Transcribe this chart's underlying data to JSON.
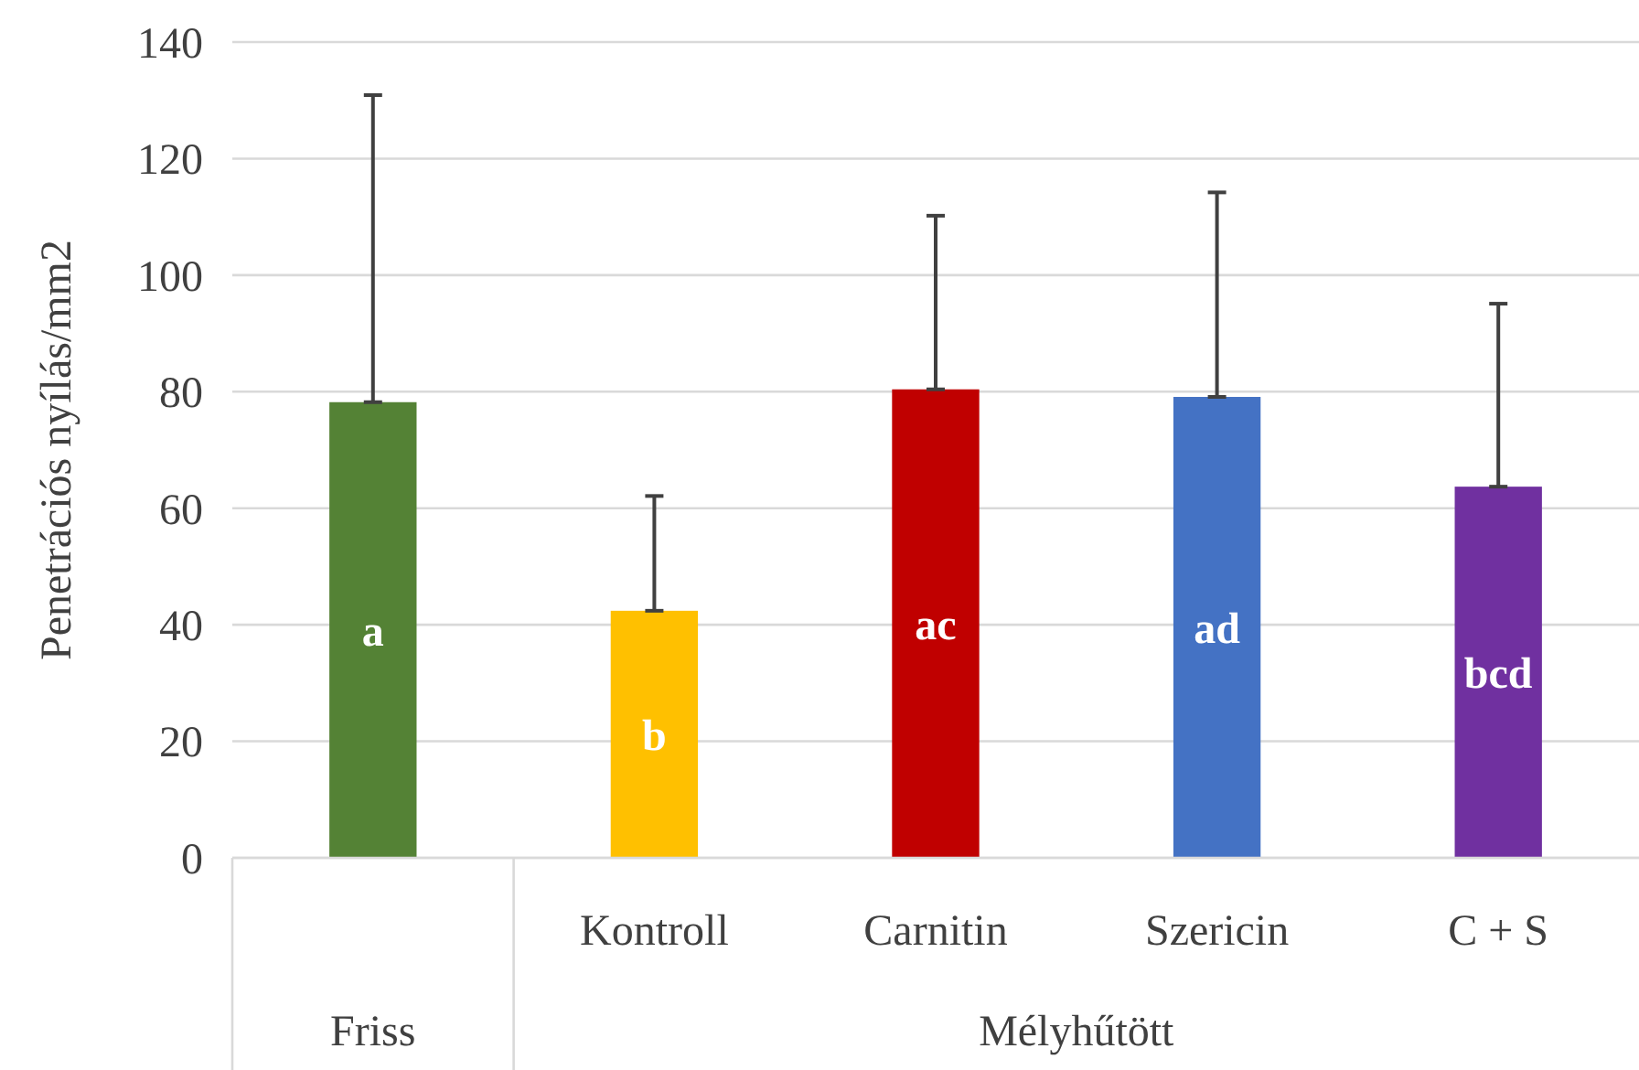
{
  "chart_data": {
    "type": "bar",
    "ylabel": "Penetrációs nyílás/mm2",
    "categories": [
      null,
      "Kontroll",
      "Carnitin",
      "Szericin",
      "C + S"
    ],
    "values": [
      78.2,
      42.4,
      80.4,
      79.1,
      63.7
    ],
    "colors": [
      "#548235",
      "#ffc000",
      "#c00000",
      "#4472c4",
      "#7030a0"
    ],
    "errors": [
      [
        78.2,
        130.9
      ],
      [
        42.4,
        62.1
      ],
      [
        80.4,
        110.2
      ],
      [
        79.1,
        114.2
      ],
      [
        63.7,
        95.1
      ]
    ],
    "value_labels": [
      "a",
      "b",
      "ac",
      "ad",
      "bcd"
    ],
    "annotations": [
      "Friss",
      "Mélyhűtött"
    ],
    "ylim": [
      0,
      140
    ],
    "yticks": [
      0,
      20,
      40,
      60,
      80,
      100,
      120,
      140
    ],
    "grid": "y"
  }
}
